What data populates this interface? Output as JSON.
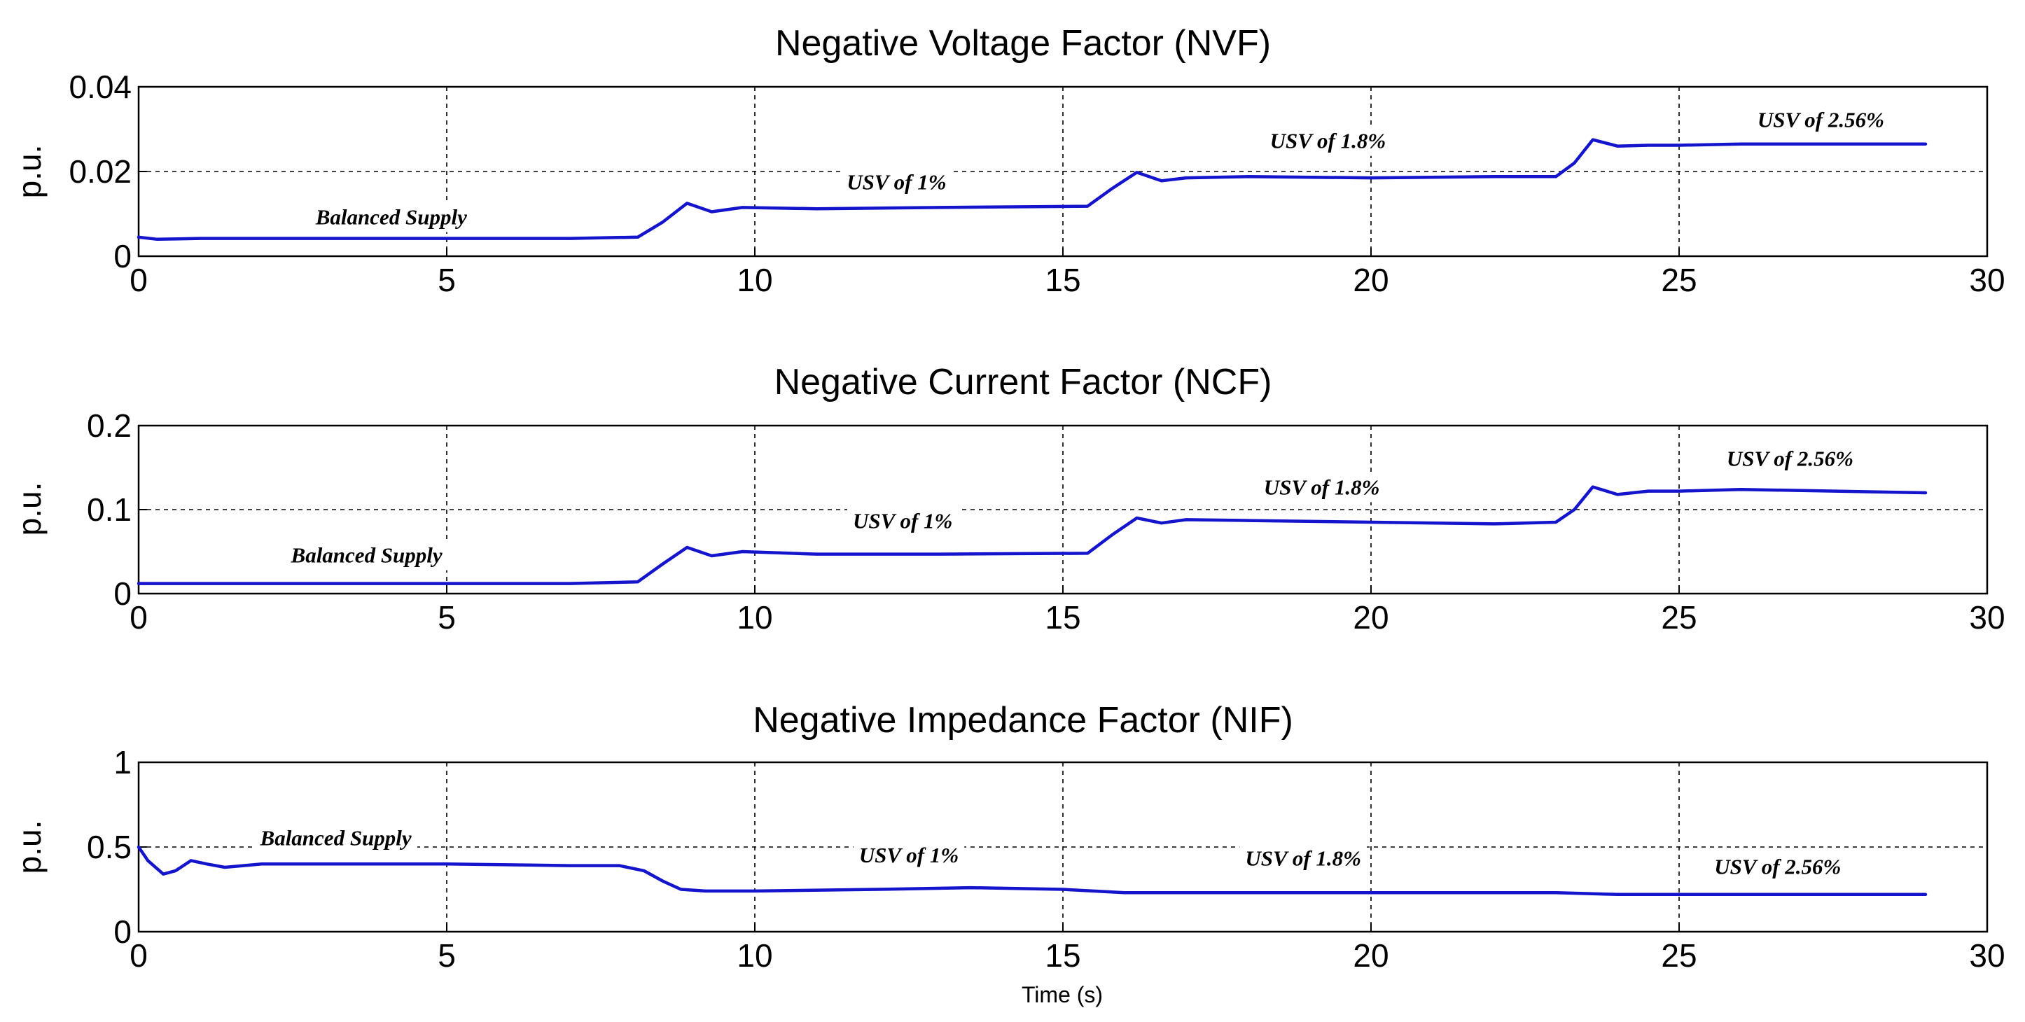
{
  "chart_data": [
    {
      "type": "line",
      "title": "Negative Voltage Factor (NVF)",
      "xlabel": "",
      "ylabel": "p.u.",
      "xlim": [
        0,
        30
      ],
      "ylim": [
        0,
        0.04
      ],
      "xticks": [
        0,
        5,
        10,
        15,
        20,
        25,
        30
      ],
      "xtick_labels": [
        "0",
        "5",
        "10",
        "15",
        "20",
        "25",
        "30"
      ],
      "yticks": [
        0,
        0.02,
        0.04
      ],
      "ytick_labels": [
        "0",
        "0.02",
        "0.04"
      ],
      "grid": true,
      "line_color": "#1414cc",
      "series": [
        {
          "name": "NVF",
          "x": [
            0,
            0.3,
            1,
            4,
            7,
            8.1,
            8.5,
            8.9,
            9.3,
            9.8,
            11,
            13,
            15.4,
            15.8,
            16.2,
            16.6,
            17,
            18,
            20,
            22,
            23,
            23.3,
            23.6,
            24,
            24.5,
            25,
            26,
            29
          ],
          "y": [
            0.0045,
            0.004,
            0.0042,
            0.0042,
            0.0042,
            0.0045,
            0.008,
            0.0125,
            0.0105,
            0.0115,
            0.0112,
            0.0115,
            0.0118,
            0.016,
            0.0198,
            0.0178,
            0.0185,
            0.0188,
            0.0185,
            0.0188,
            0.0188,
            0.022,
            0.0275,
            0.026,
            0.0262,
            0.0262,
            0.0265,
            0.0265
          ]
        }
      ],
      "annotations": [
        {
          "text": "Balanced Supply",
          "x": 4.1,
          "y": 0.0075
        },
        {
          "text": "USV of 1%",
          "x": 12.3,
          "y": 0.0158
        },
        {
          "text": "USV of 1.8%",
          "x": 19.3,
          "y": 0.0255
        },
        {
          "text": "USV of 2.56%",
          "x": 27.3,
          "y": 0.0305
        }
      ]
    },
    {
      "type": "line",
      "title": "Negative Current Factor (NCF)",
      "xlabel": "",
      "ylabel": "p.u.",
      "xlim": [
        0,
        30
      ],
      "ylim": [
        0,
        0.2
      ],
      "xticks": [
        0,
        5,
        10,
        15,
        20,
        25,
        30
      ],
      "xtick_labels": [
        "0",
        "5",
        "10",
        "15",
        "20",
        "25",
        "30"
      ],
      "yticks": [
        0,
        0.1,
        0.2
      ],
      "ytick_labels": [
        "0",
        "0.1",
        "0.2"
      ],
      "grid": true,
      "line_color": "#1414cc",
      "series": [
        {
          "name": "NCF",
          "x": [
            0,
            1,
            4,
            7,
            8.1,
            8.5,
            8.9,
            9.3,
            9.8,
            11,
            13,
            15.4,
            15.8,
            16.2,
            16.6,
            17,
            18,
            20,
            22,
            23,
            23.3,
            23.6,
            24,
            24.5,
            25,
            26,
            29
          ],
          "y": [
            0.012,
            0.012,
            0.012,
            0.012,
            0.014,
            0.035,
            0.055,
            0.045,
            0.05,
            0.047,
            0.047,
            0.048,
            0.07,
            0.09,
            0.084,
            0.088,
            0.087,
            0.085,
            0.083,
            0.085,
            0.1,
            0.127,
            0.118,
            0.122,
            0.122,
            0.124,
            0.12
          ]
        }
      ],
      "annotations": [
        {
          "text": "Balanced Supply",
          "x": 3.7,
          "y": 0.037
        },
        {
          "text": "USV of 1%",
          "x": 12.4,
          "y": 0.078
        },
        {
          "text": "USV of 1.8%",
          "x": 19.2,
          "y": 0.118
        },
        {
          "text": "USV of 2.56%",
          "x": 26.8,
          "y": 0.152
        }
      ]
    },
    {
      "type": "line",
      "title": "Negative Impedance Factor (NIF)",
      "xlabel": "Time (s)",
      "ylabel": "p.u.",
      "xlim": [
        0,
        30
      ],
      "ylim": [
        0,
        1
      ],
      "xticks": [
        0,
        5,
        10,
        15,
        20,
        25,
        30
      ],
      "xtick_labels": [
        "0",
        "5",
        "10",
        "15",
        "20",
        "25",
        "30"
      ],
      "yticks": [
        0,
        0.5,
        1
      ],
      "ytick_labels": [
        "0",
        "0.5",
        "1"
      ],
      "grid": true,
      "line_color": "#1414cc",
      "series": [
        {
          "name": "NIF",
          "x": [
            0,
            0.15,
            0.4,
            0.6,
            0.85,
            1.1,
            1.4,
            1.7,
            2,
            3,
            5,
            7,
            7.8,
            8.2,
            8.5,
            8.8,
            9.2,
            10,
            12,
            13.5,
            15,
            16,
            18,
            20,
            22,
            23,
            24,
            26,
            29
          ],
          "y": [
            0.5,
            0.42,
            0.34,
            0.36,
            0.42,
            0.4,
            0.38,
            0.39,
            0.4,
            0.4,
            0.4,
            0.39,
            0.39,
            0.36,
            0.3,
            0.25,
            0.24,
            0.24,
            0.25,
            0.26,
            0.25,
            0.23,
            0.23,
            0.23,
            0.23,
            0.23,
            0.22,
            0.22,
            0.22
          ]
        }
      ],
      "annotations": [
        {
          "text": "Balanced Supply",
          "x": 3.2,
          "y": 0.51
        },
        {
          "text": "USV of 1%",
          "x": 12.5,
          "y": 0.41
        },
        {
          "text": "USV of 1.8%",
          "x": 18.9,
          "y": 0.39
        },
        {
          "text": "USV of 2.56%",
          "x": 26.6,
          "y": 0.34
        }
      ]
    }
  ]
}
